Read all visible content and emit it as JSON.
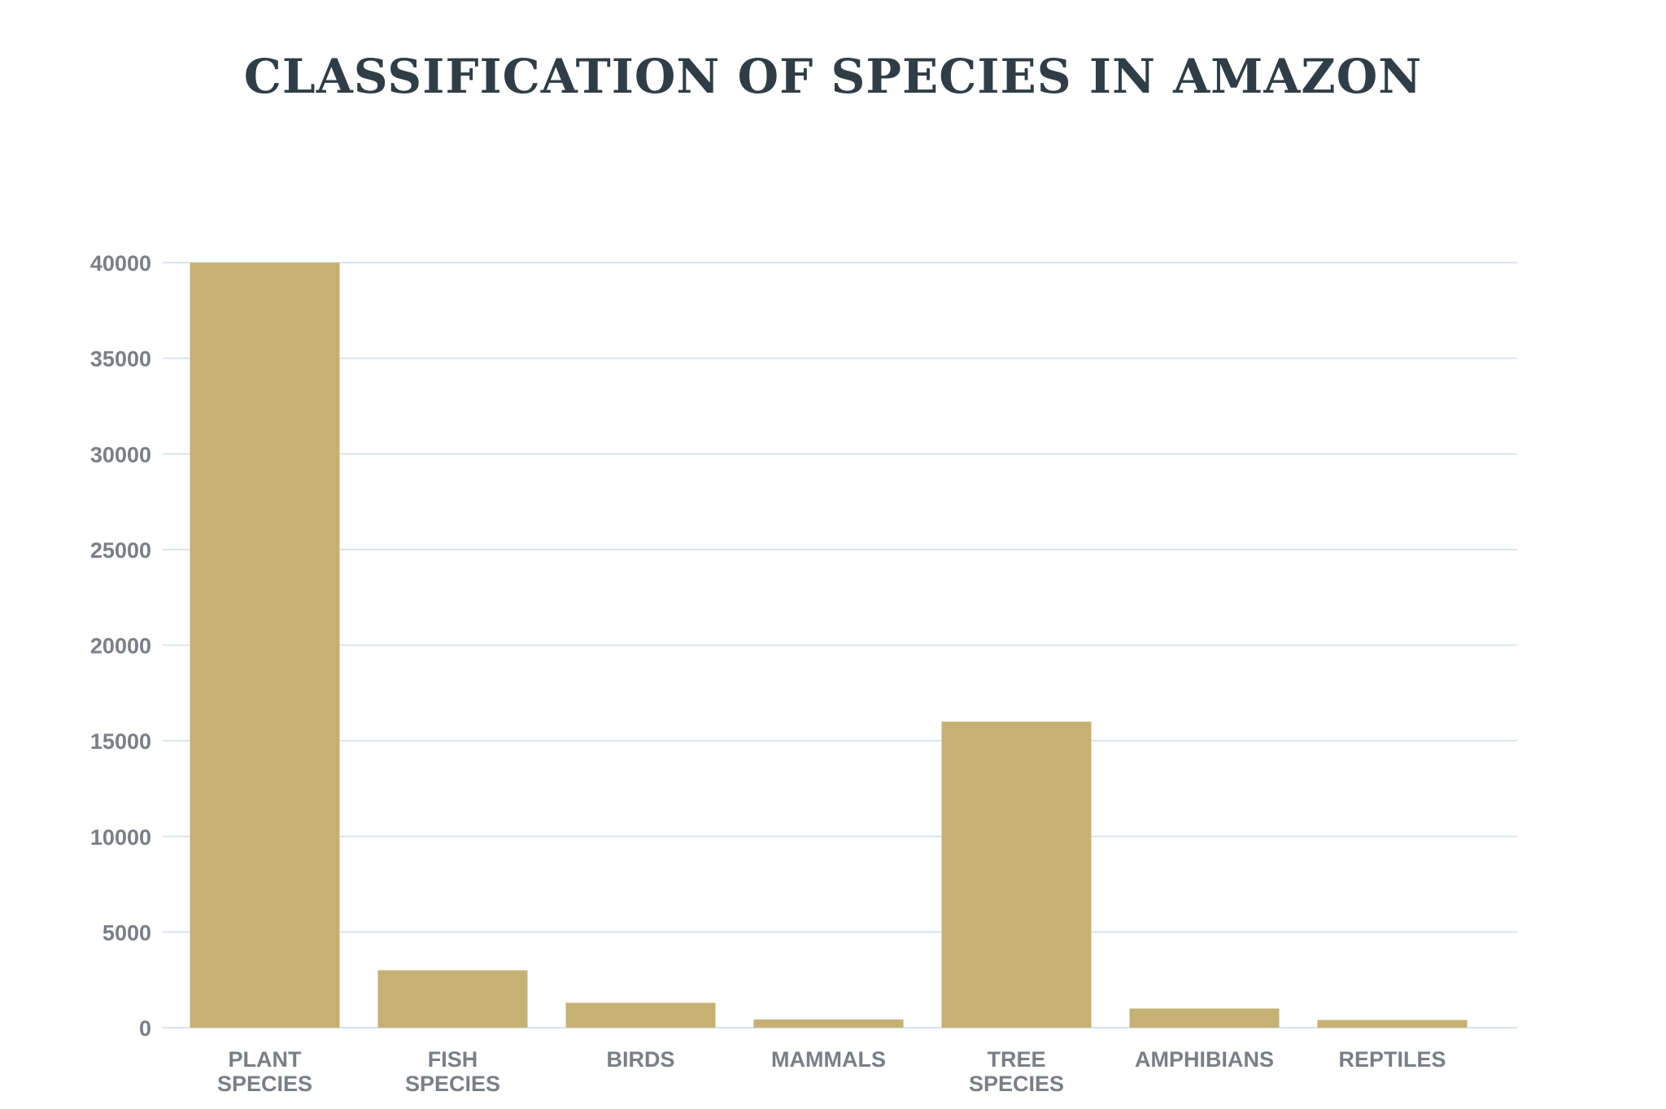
{
  "chart_data": {
    "type": "bar",
    "title": "CLASSIFICATION OF SPECIES IN AMAZON",
    "xlabel": "",
    "ylabel": "",
    "categories": [
      [
        "PLANT",
        "SPECIES"
      ],
      [
        "FISH",
        "SPECIES"
      ],
      [
        "BIRDS"
      ],
      [
        "MAMMALS"
      ],
      [
        "TREE",
        "SPECIES"
      ],
      [
        "AMPHIBIANS"
      ],
      [
        "REPTILES"
      ]
    ],
    "values": [
      40000,
      3000,
      1300,
      430,
      16000,
      1000,
      400
    ],
    "ylim": [
      0,
      40000
    ],
    "yticks": [
      0,
      5000,
      10000,
      15000,
      20000,
      25000,
      30000,
      35000,
      40000
    ],
    "grid": true,
    "legend": "none",
    "colors": {
      "bar": "#c5b172",
      "grid": "#dbe4ea",
      "title": "#2f3e46",
      "labels": "#7a7f86"
    }
  }
}
